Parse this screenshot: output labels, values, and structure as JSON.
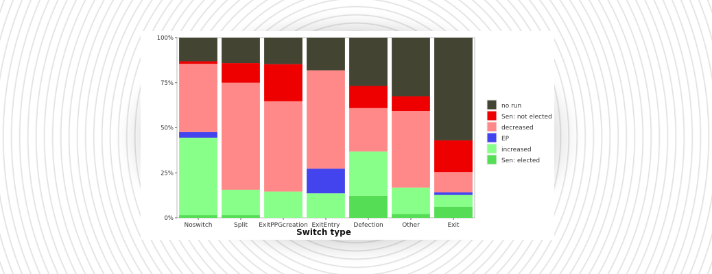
{
  "chart_data": {
    "type": "bar",
    "stacked": true,
    "title": "",
    "xlabel": "Switch type",
    "ylabel": "",
    "ylim": [
      0,
      100
    ],
    "yticks": [
      "0%",
      "25%",
      "50%",
      "75%",
      "100%"
    ],
    "categories": [
      "Noswitch",
      "Split",
      "ExitPPGcreation",
      "ExitEntry",
      "Defection",
      "Other",
      "Exit"
    ],
    "legend_position": "right",
    "series": [
      {
        "name": "Sen: elected",
        "color": "#55dd55",
        "values": [
          1.5,
          1.5,
          0,
          0,
          12.2,
          2.2,
          6.2
        ]
      },
      {
        "name": "increased",
        "color": "#88ff88",
        "values": [
          43.0,
          14.1,
          14.6,
          13.6,
          24.6,
          14.6,
          6.5
        ]
      },
      {
        "name": "EP",
        "color": "#4444ee",
        "values": [
          3.1,
          0,
          0,
          13.7,
          0,
          0,
          1.5
        ]
      },
      {
        "name": "decreased",
        "color": "#ff8888",
        "values": [
          37.9,
          59.4,
          50.1,
          54.6,
          24.1,
          42.5,
          11.2
        ]
      },
      {
        "name": "Sen: not elected",
        "color": "#ee0000",
        "values": [
          1.4,
          10.9,
          20.6,
          0,
          12.3,
          8.2,
          17.6
        ]
      },
      {
        "name": "no run",
        "color": "#444433",
        "values": [
          13.1,
          14.1,
          14.7,
          18.1,
          26.8,
          32.5,
          57.0
        ]
      }
    ],
    "legend_order": [
      "no run",
      "Sen: not elected",
      "decreased",
      "EP",
      "increased",
      "Sen: elected"
    ]
  }
}
